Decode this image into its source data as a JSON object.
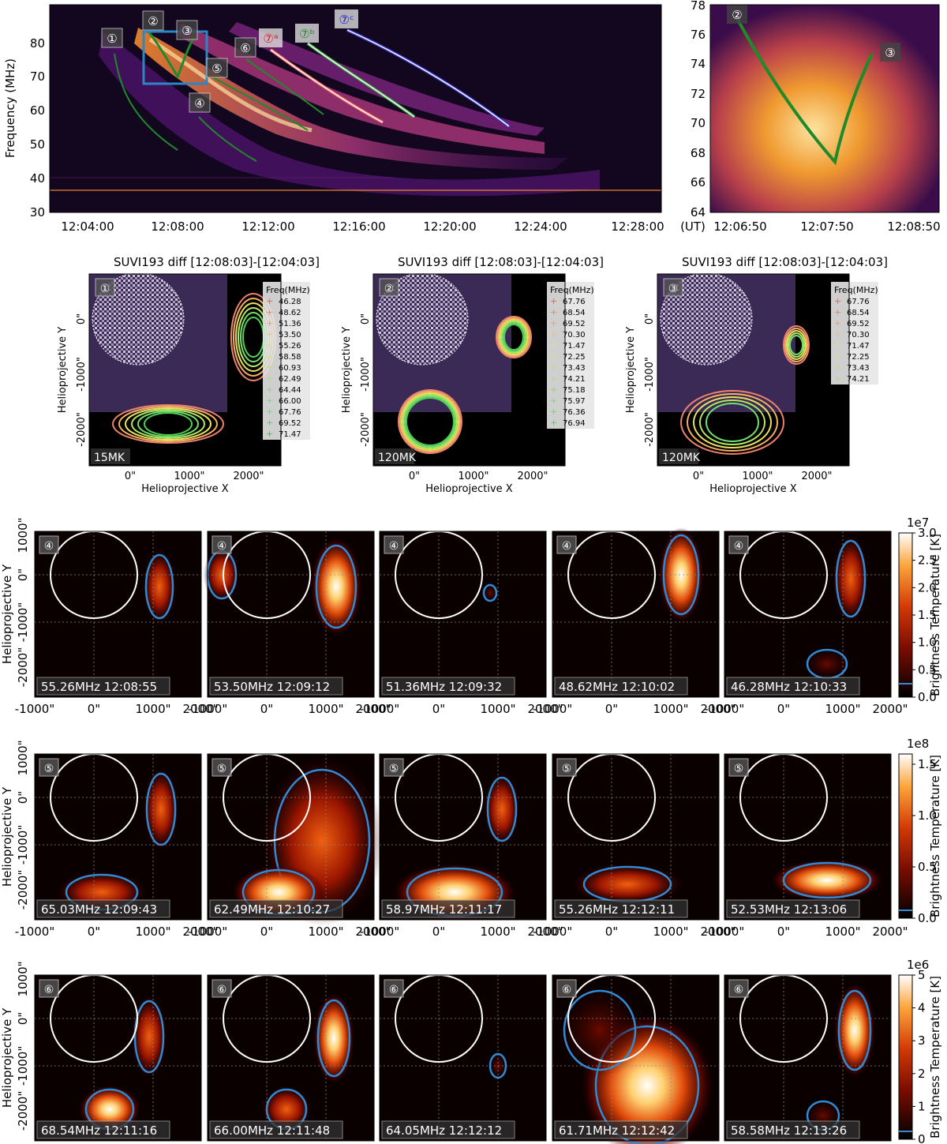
{
  "colors": {
    "spec_bg": "#13061f",
    "spec_mid": "#6a1d7a",
    "spec_hot": "#f38a2c",
    "spec_peak": "#fde3a0",
    "map_bg": "#0a0000",
    "contour_blue": "#2f8bd6",
    "track_green": "#1f8a2a",
    "box_blue": "#2b86c5",
    "limb": "#ffffff"
  },
  "top_spectrogram": {
    "ylabel": "Frequency (MHz)",
    "yticks": [
      "30",
      "40",
      "50",
      "60",
      "70",
      "80"
    ],
    "xticks": [
      "12:04:00",
      "12:08:00",
      "12:12:00",
      "12:16:00",
      "12:20:00",
      "12:24:00",
      "12:28:00"
    ],
    "ut_label": "(UT)",
    "burst_labels": [
      "①",
      "②",
      "③",
      "④",
      "⑤",
      "⑥",
      "⑦ᵃ",
      "⑦ᵇ",
      "⑦ᶜ"
    ]
  },
  "zoom_spectrogram": {
    "yticks": [
      "64",
      "66",
      "68",
      "70",
      "72",
      "74",
      "76",
      "78"
    ],
    "xticks": [
      "12:06:50",
      "12:07:50",
      "12:08:50"
    ],
    "labels": [
      "②",
      "③"
    ]
  },
  "suvi_panels": [
    {
      "title": "SUVI193 diff [12:08:03]-[12:04:03]",
      "badge": "①",
      "temp": "15MK",
      "legend_title": "Freq(MHz)",
      "freqs": [
        "46.28",
        "48.62",
        "51.36",
        "53.50",
        "55.26",
        "58.58",
        "60.93",
        "62.49",
        "64.44",
        "66.00",
        "67.76",
        "69.52",
        "71.47"
      ]
    },
    {
      "title": "SUVI193 diff [12:08:03]-[12:04:03]",
      "badge": "②",
      "temp": "120MK",
      "legend_title": "Freq(MHz)",
      "freqs": [
        "67.76",
        "68.54",
        "69.52",
        "70.30",
        "71.47",
        "72.25",
        "73.43",
        "74.21",
        "75.18",
        "75.97",
        "76.36",
        "76.94"
      ]
    },
    {
      "title": "SUVI193 diff [12:08:03]-[12:04:03]",
      "badge": "③",
      "temp": "120MK",
      "legend_title": "Freq(MHz)",
      "freqs": [
        "67.76",
        "68.54",
        "69.52",
        "70.30",
        "71.47",
        "72.25",
        "73.43",
        "74.21"
      ]
    }
  ],
  "suvi_axes": {
    "xlabel": "Helioprojective X",
    "ylabel": "Helioprojective Y",
    "xticks": [
      "0\"",
      "1000\"",
      "2000\""
    ],
    "yticks": [
      "0\"",
      "-1000\"",
      "-2000\""
    ]
  },
  "map_rows": [
    {
      "badge": "④",
      "colorbar_exp": "1e7",
      "colorbar_ticks": [
        "0.0",
        "0.5",
        "1.0",
        "1.5",
        "2.0",
        "2.5",
        "3.0"
      ],
      "panels": [
        "55.26MHz 12:08:55",
        "53.50MHz 12:09:12",
        "51.36MHz 12:09:32",
        "48.62MHz 12:10:02",
        "46.28MHz 12:10:33"
      ]
    },
    {
      "badge": "⑤",
      "colorbar_exp": "1e8",
      "colorbar_ticks": [
        "0.0",
        "0.5",
        "1.0",
        "1.5"
      ],
      "panels": [
        "65.03MHz 12:09:43",
        "62.49MHz 12:10:27",
        "58.97MHz 12:11:17",
        "55.26MHz 12:12:11",
        "52.53MHz 12:13:06"
      ]
    },
    {
      "badge": "⑥",
      "colorbar_exp": "1e6",
      "colorbar_ticks": [
        "0",
        "1",
        "2",
        "3",
        "4",
        "5"
      ],
      "panels": [
        "68.54MHz 12:11:16",
        "66.00MHz 12:11:48",
        "64.05MHz 12:12:12",
        "61.71MHz 12:12:42",
        "58.58MHz 12:13:26"
      ]
    }
  ],
  "map_axes": {
    "ylabel": "Helioprojective Y",
    "yticks": [
      "1000\"",
      "0\"",
      "-1000\"",
      "-2000\""
    ],
    "xticks": [
      "-1000\"",
      "0\"",
      "1000\"",
      "2000\""
    ],
    "colorbar_label": "Brightness Temperature [K]"
  }
}
